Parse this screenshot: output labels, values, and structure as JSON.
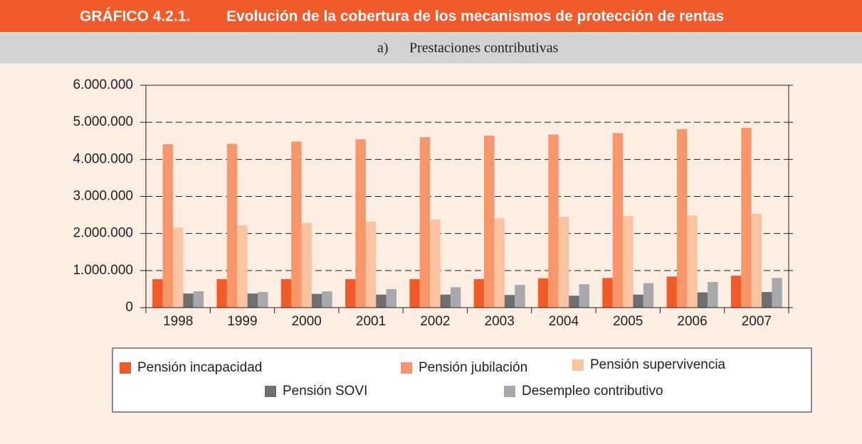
{
  "chart_data": {
    "type": "bar",
    "label": "GRÁFICO 4.2.1.",
    "title": "Evolución de la cobertura de los mecanismos de protección de rentas",
    "subtitle_label": "a)",
    "subtitle": "Prestaciones contributivas",
    "categories": [
      "1998",
      "1999",
      "2000",
      "2001",
      "2002",
      "2003",
      "2004",
      "2005",
      "2006",
      "2007"
    ],
    "series": [
      {
        "name": "Pensión incapacidad",
        "color": "#f15a29",
        "values": [
          770000,
          770000,
          770000,
          770000,
          770000,
          770000,
          790000,
          800000,
          840000,
          860000
        ]
      },
      {
        "name": "Pensión jubilación",
        "color": "#f7966b",
        "values": [
          4410000,
          4420000,
          4480000,
          4540000,
          4600000,
          4640000,
          4670000,
          4710000,
          4810000,
          4850000
        ]
      },
      {
        "name": "Pensión supervivencia",
        "color": "#fbc3a0",
        "values": [
          2160000,
          2220000,
          2280000,
          2320000,
          2380000,
          2410000,
          2450000,
          2470000,
          2490000,
          2530000
        ]
      },
      {
        "name": "Pensión SOVI",
        "color": "#6d6e71",
        "values": [
          380000,
          380000,
          370000,
          350000,
          350000,
          340000,
          320000,
          350000,
          410000,
          420000
        ]
      },
      {
        "name": "Desempleo contributivo",
        "color": "#a7a9ac",
        "values": [
          440000,
          420000,
          440000,
          500000,
          550000,
          610000,
          630000,
          660000,
          690000,
          800000
        ]
      }
    ],
    "ylim": [
      0,
      6000000
    ],
    "yticks": [
      0,
      {
        "value": 1000000,
        "label": "1.000.000"
      },
      {
        "value": 2000000,
        "label": "2.000.000"
      },
      {
        "value": 3000000,
        "label": "3.000.000"
      },
      {
        "value": 4000000,
        "label": "4.000.000"
      },
      {
        "value": 5000000,
        "label": "5.000.000"
      },
      {
        "value": 6000000,
        "label": "6.000.000"
      }
    ],
    "grid": true
  }
}
